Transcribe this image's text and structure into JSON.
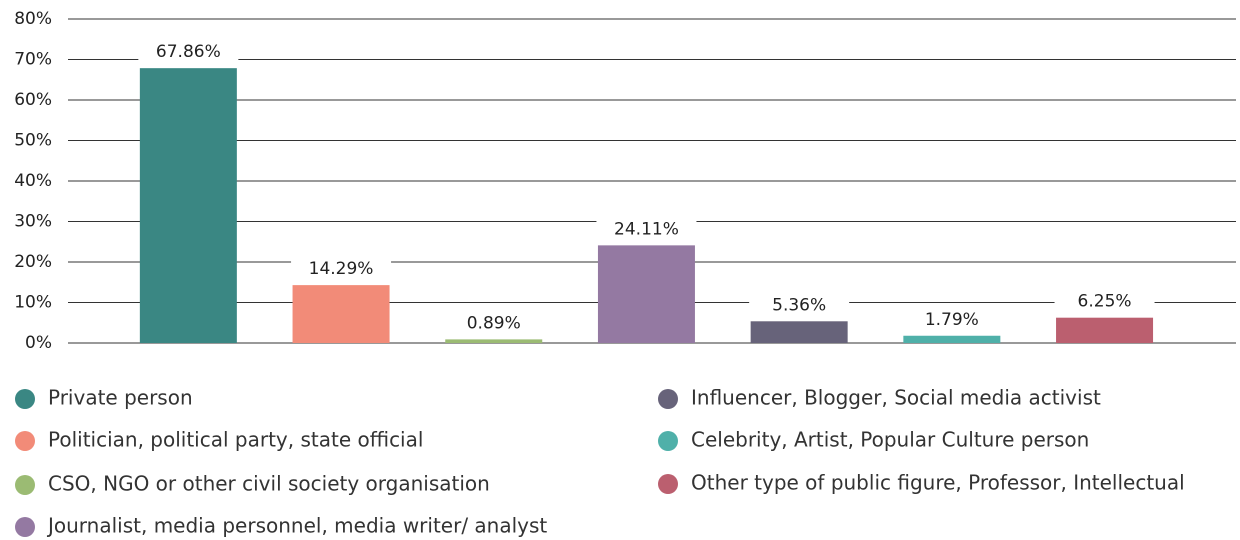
{
  "chart_data": {
    "type": "bar",
    "categories": [
      "Private person",
      "Politician, political party, state official",
      "CSO, NGO or other civil society organisation",
      "Journalist, media personnel, media writer/ analyst",
      "Influencer, Blogger, Social media activist",
      "Celebrity, Artist, Popular Culture person",
      "Other type of public figure, Professor, Intellectual"
    ],
    "values": [
      67.86,
      14.29,
      0.89,
      24.11,
      5.36,
      1.79,
      6.25
    ],
    "value_labels": [
      "67.86%",
      "14.29%",
      "0.89%",
      "24.11%",
      "5.36%",
      "1.79%",
      "6.25%"
    ],
    "colors": [
      "#3a8783",
      "#f28b78",
      "#9bbb73",
      "#9479a2",
      "#67637a",
      "#4fb0a9",
      "#bb5f6f"
    ],
    "ylim": [
      0,
      80
    ],
    "yticks": [
      {
        "value": 0,
        "label": "0%"
      },
      {
        "value": 10,
        "label": "10%"
      },
      {
        "value": 20,
        "label": "20%"
      },
      {
        "value": 30,
        "label": "30%"
      },
      {
        "value": 40,
        "label": "40%"
      },
      {
        "value": 50,
        "label": "50%"
      },
      {
        "value": 60,
        "label": "60%"
      },
      {
        "value": 70,
        "label": "70%"
      },
      {
        "value": 80,
        "label": "80%"
      }
    ],
    "grid": true
  }
}
